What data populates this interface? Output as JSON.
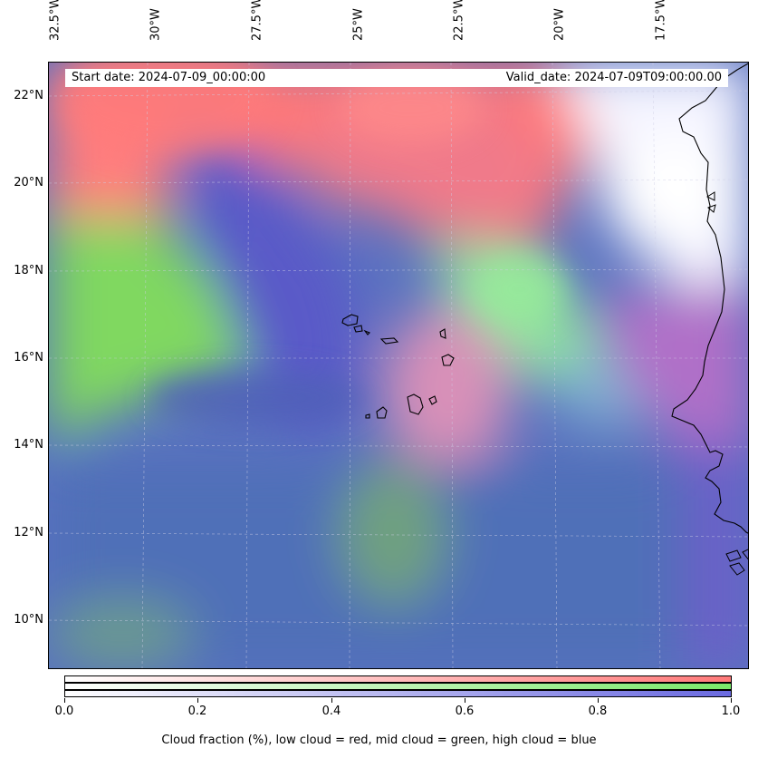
{
  "header": {
    "start_date": "Start date: 2024-07-09_00:00:00",
    "valid_date": "Valid_date: 2024-07-09T09:00:00.00"
  },
  "map": {
    "longitude_labels": [
      "32.5°W",
      "30°W",
      "27.5°W",
      "25°W",
      "22.5°W",
      "20°W",
      "17.5°W"
    ],
    "latitude_labels": [
      "22°N",
      "20°N",
      "18°N",
      "16°N",
      "14°N",
      "12°N",
      "10°N"
    ],
    "colors": {
      "low_cloud": "#ff7a7a",
      "mid_cloud": "#7ae86a",
      "high_cloud": "#5a6ad0",
      "clear": "#ffffff"
    }
  },
  "colorbar": {
    "tick_labels": [
      "0.0",
      "0.2",
      "0.4",
      "0.6",
      "0.8",
      "1.0"
    ],
    "label": "Cloud fraction (%), low cloud = red, mid cloud = green, high cloud = blue"
  }
}
